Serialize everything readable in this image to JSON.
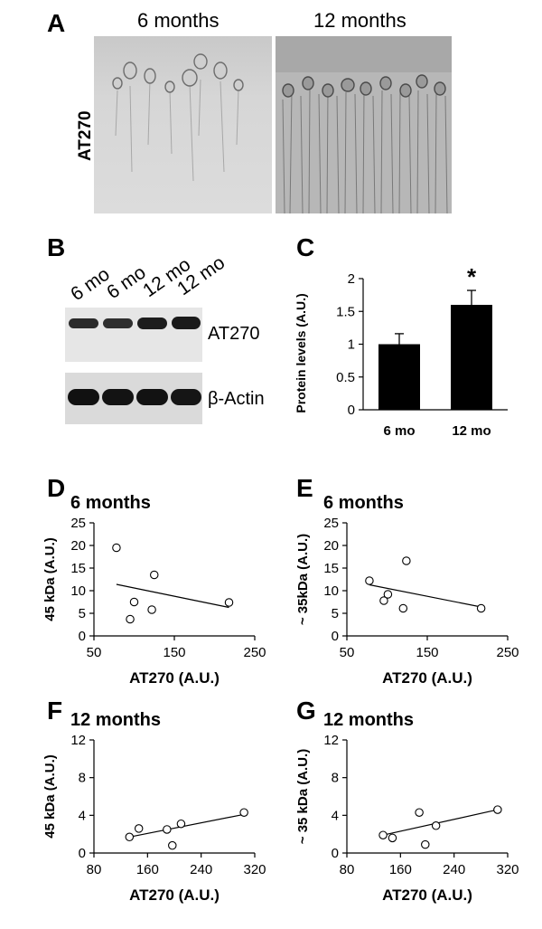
{
  "panel_a": {
    "letter": "A",
    "row_label": "AT270",
    "left_title": "6 months",
    "right_title": "12 months"
  },
  "panel_b": {
    "letter": "B",
    "lanes": [
      "6 mo",
      "6 mo",
      "12 mo",
      "12 mo"
    ],
    "top_label": "AT270",
    "bottom_label": "β-Actin"
  },
  "chart_data": [
    {
      "panel": "C",
      "type": "bar",
      "categories": [
        "6 mo",
        "12 mo"
      ],
      "values": [
        1.0,
        1.6
      ],
      "errors": [
        0.16,
        0.22
      ],
      "significance": [
        "",
        "*"
      ],
      "ylabel": "Protein levels (A.U.)",
      "ylim": [
        0,
        2
      ],
      "yticks": [
        0,
        0.5,
        1,
        1.5,
        2
      ],
      "bar_color": "#000000"
    },
    {
      "panel": "D",
      "type": "scatter",
      "title": "6 months",
      "xlabel": "AT270 (A.U.)",
      "ylabel": "45 kDa (A.U.)",
      "xlim": [
        50,
        250
      ],
      "ylim": [
        0,
        25
      ],
      "xticks": [
        50,
        150,
        250
      ],
      "yticks": [
        0,
        5,
        10,
        15,
        20,
        25
      ],
      "points": [
        [
          78,
          19.5
        ],
        [
          95,
          3.7
        ],
        [
          100,
          7.5
        ],
        [
          122,
          5.8
        ],
        [
          125,
          13.5
        ],
        [
          218,
          7.4
        ]
      ],
      "trendline": [
        [
          78,
          11.4
        ],
        [
          218,
          6.3
        ]
      ]
    },
    {
      "panel": "E",
      "type": "scatter",
      "title": "6 months",
      "xlabel": "AT270 (A.U.)",
      "ylabel": "~ 35kDa (A.U.)",
      "xlim": [
        50,
        250
      ],
      "ylim": [
        0,
        25
      ],
      "xticks": [
        50,
        150,
        250
      ],
      "yticks": [
        0,
        5,
        10,
        15,
        20,
        25
      ],
      "points": [
        [
          78,
          12.2
        ],
        [
          96,
          7.8
        ],
        [
          101,
          9.2
        ],
        [
          120,
          6.1
        ],
        [
          124,
          16.6
        ],
        [
          217,
          6.1
        ]
      ],
      "trendline": [
        [
          78,
          11.3
        ],
        [
          217,
          6.4
        ]
      ]
    },
    {
      "panel": "F",
      "type": "scatter",
      "title": "12 months",
      "xlabel": "AT270 (A.U.)",
      "ylabel": "45 kDa (A.U.)",
      "xlim": [
        80,
        320
      ],
      "ylim": [
        0,
        12
      ],
      "xticks": [
        80,
        160,
        240,
        320
      ],
      "yticks": [
        0,
        4,
        8,
        12
      ],
      "points": [
        [
          133,
          1.7
        ],
        [
          147,
          2.6
        ],
        [
          189,
          2.5
        ],
        [
          197,
          0.8
        ],
        [
          210,
          3.1
        ],
        [
          304,
          4.3
        ]
      ],
      "trendline": [
        [
          133,
          1.7
        ],
        [
          304,
          4.1
        ]
      ]
    },
    {
      "panel": "G",
      "type": "scatter",
      "title": "12 months",
      "xlabel": "AT270 (A.U.)",
      "ylabel": "~ 35 kDa (A.U.)",
      "xlim": [
        80,
        320
      ],
      "ylim": [
        0,
        12
      ],
      "xticks": [
        80,
        160,
        240,
        320
      ],
      "yticks": [
        0,
        4,
        8,
        12
      ],
      "points": [
        [
          134,
          1.9
        ],
        [
          148,
          1.6
        ],
        [
          188,
          4.3
        ],
        [
          197,
          0.9
        ],
        [
          213,
          2.9
        ],
        [
          305,
          4.6
        ]
      ],
      "trendline": [
        [
          134,
          1.9
        ],
        [
          305,
          4.6
        ]
      ]
    }
  ]
}
